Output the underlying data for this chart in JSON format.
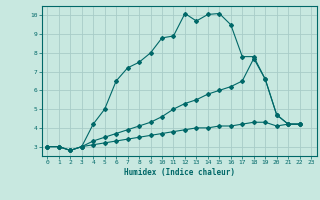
{
  "xlabel": "Humidex (Indice chaleur)",
  "ylabel": "",
  "background_color": "#c8e8e0",
  "grid_color": "#a8ccc8",
  "line_color": "#006868",
  "xlim": [
    -0.5,
    23.5
  ],
  "ylim": [
    2.5,
    10.5
  ],
  "xticks": [
    0,
    1,
    2,
    3,
    4,
    5,
    6,
    7,
    8,
    9,
    10,
    11,
    12,
    13,
    14,
    15,
    16,
    17,
    18,
    19,
    20,
    21,
    22,
    23
  ],
  "yticks": [
    3,
    4,
    5,
    6,
    7,
    8,
    9,
    10
  ],
  "line1_x": [
    0,
    1,
    2,
    3,
    4,
    5,
    6,
    7,
    8,
    9,
    10,
    11,
    12,
    13,
    14,
    15,
    16,
    17,
    18,
    19,
    20,
    21,
    22
  ],
  "line1_y": [
    3.0,
    3.0,
    2.8,
    3.0,
    4.2,
    5.0,
    6.5,
    7.2,
    7.5,
    8.0,
    8.8,
    8.9,
    10.1,
    9.7,
    10.05,
    10.1,
    9.5,
    7.8,
    7.8,
    6.6,
    4.7,
    4.2,
    4.2
  ],
  "line2_x": [
    0,
    1,
    2,
    3,
    4,
    5,
    6,
    7,
    8,
    9,
    10,
    11,
    12,
    13,
    14,
    15,
    16,
    17,
    18,
    19,
    20,
    21,
    22
  ],
  "line2_y": [
    3.0,
    3.0,
    2.8,
    3.0,
    3.3,
    3.5,
    3.7,
    3.9,
    4.1,
    4.3,
    4.6,
    5.0,
    5.3,
    5.5,
    5.8,
    6.0,
    6.2,
    6.5,
    7.7,
    6.6,
    4.7,
    4.2,
    4.2
  ],
  "line3_x": [
    0,
    1,
    2,
    3,
    4,
    5,
    6,
    7,
    8,
    9,
    10,
    11,
    12,
    13,
    14,
    15,
    16,
    17,
    18,
    19,
    20,
    21,
    22
  ],
  "line3_y": [
    3.0,
    3.0,
    2.8,
    3.0,
    3.1,
    3.2,
    3.3,
    3.4,
    3.5,
    3.6,
    3.7,
    3.8,
    3.9,
    4.0,
    4.0,
    4.1,
    4.1,
    4.2,
    4.3,
    4.3,
    4.1,
    4.2,
    4.2
  ]
}
